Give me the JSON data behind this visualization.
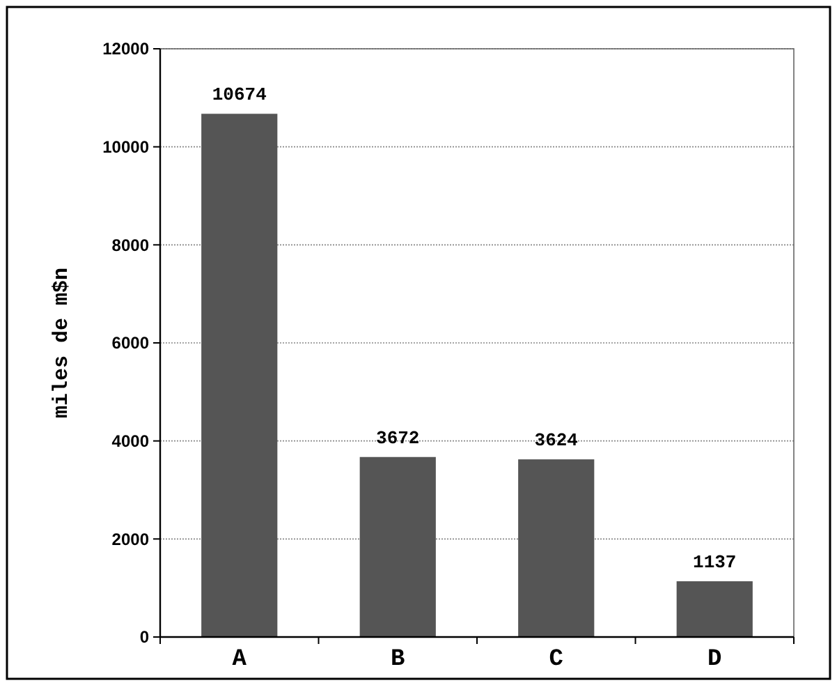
{
  "chart_data": {
    "type": "bar",
    "ylabel": "miles de m$n",
    "categories": [
      "A",
      "B",
      "C",
      "D"
    ],
    "values": [
      10674,
      3672,
      3624,
      1137
    ],
    "color": "#555555",
    "ylim": [
      0,
      12000
    ],
    "yticks": [
      0,
      2000,
      4000,
      6000,
      8000,
      10000,
      12000
    ],
    "grid": "y",
    "data_labels": true
  }
}
